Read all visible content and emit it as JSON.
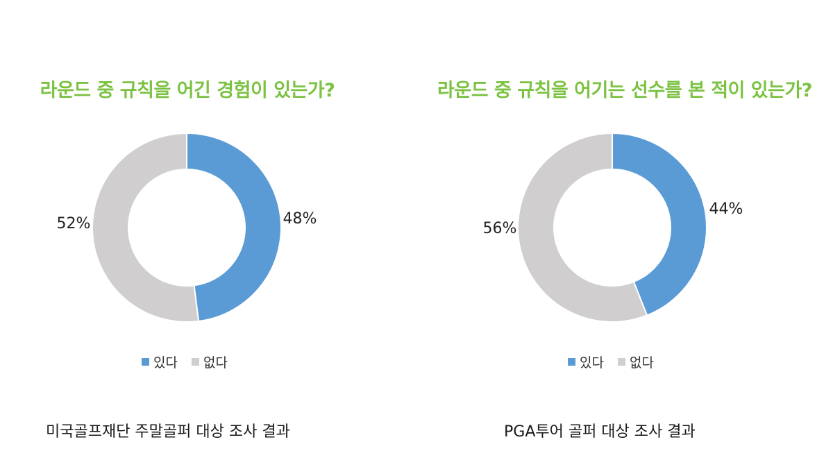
{
  "colors": {
    "title": "#7cc242",
    "yes": "#5b9bd5",
    "no": "#d0cecf"
  },
  "chart_data": [
    {
      "type": "pie",
      "title": "라운드 중 규칙을 어긴 경험이 있는가?",
      "categories": [
        "있다",
        "없다"
      ],
      "values": [
        48,
        52
      ],
      "labels": [
        "48%",
        "52%"
      ],
      "legend_position": "bottom",
      "caption": "미국골프재단 주말골퍼 대상 조사 결과"
    },
    {
      "type": "pie",
      "title": "라운드 중 규칙을 어기는 선수를 본 적이 있는가?",
      "categories": [
        "있다",
        "없다"
      ],
      "values": [
        44,
        56
      ],
      "labels": [
        "44%",
        "56%"
      ],
      "legend_position": "bottom",
      "caption": "PGA투어 골퍼 대상 조사 결과"
    }
  ]
}
